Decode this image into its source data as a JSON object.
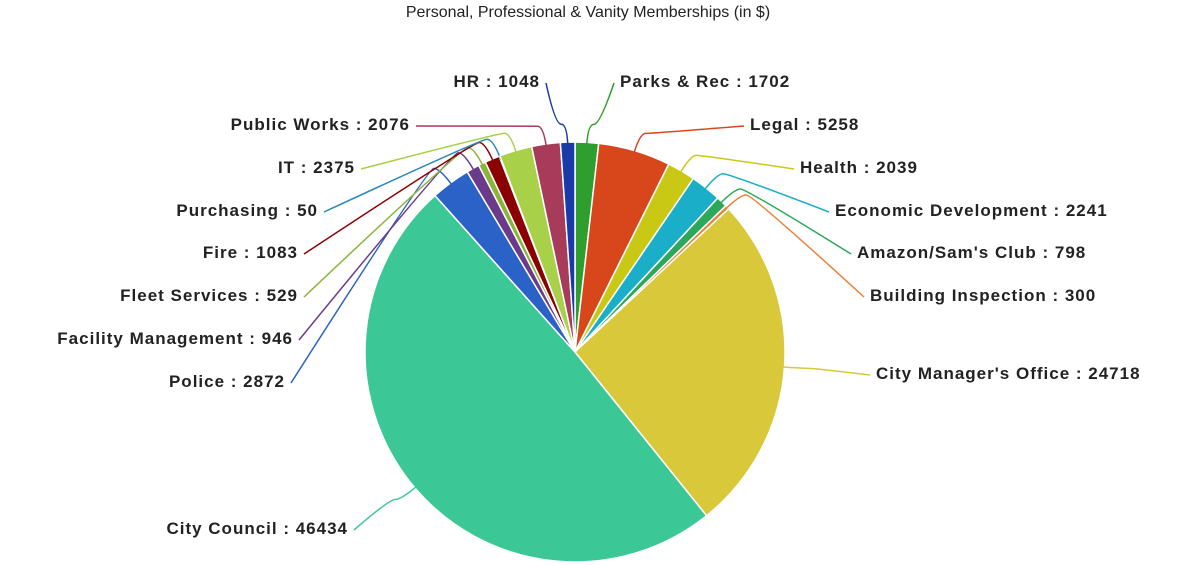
{
  "chart_data": {
    "type": "pie",
    "title": "Personal, Professional & Vanity Memberships (in $)",
    "label_separator": " : ",
    "categories": [
      "Parks & Rec",
      "Legal",
      "Health",
      "Economic Development",
      "Amazon/Sam's Club",
      "Building Inspection",
      "City Manager's Office",
      "City Council",
      "Police",
      "Facility Management",
      "Fleet Services",
      "Fire",
      "Purchasing",
      "IT",
      "Public Works",
      "HR"
    ],
    "values": [
      1702,
      5258,
      2039,
      2241,
      798,
      300,
      24718,
      46434,
      2872,
      946,
      529,
      1083,
      50,
      2375,
      2076,
      1048
    ],
    "colors": [
      "#2e9e2e",
      "#d8461b",
      "#c9c915",
      "#1aaec8",
      "#2ca85a",
      "#e8823a",
      "#d8c83a",
      "#3cc896",
      "#2a62c8",
      "#6a3b8a",
      "#8ab43a",
      "#8b0000",
      "#2a8ab8",
      "#a8d048",
      "#a83a5a",
      "#1a3aa8"
    ]
  }
}
